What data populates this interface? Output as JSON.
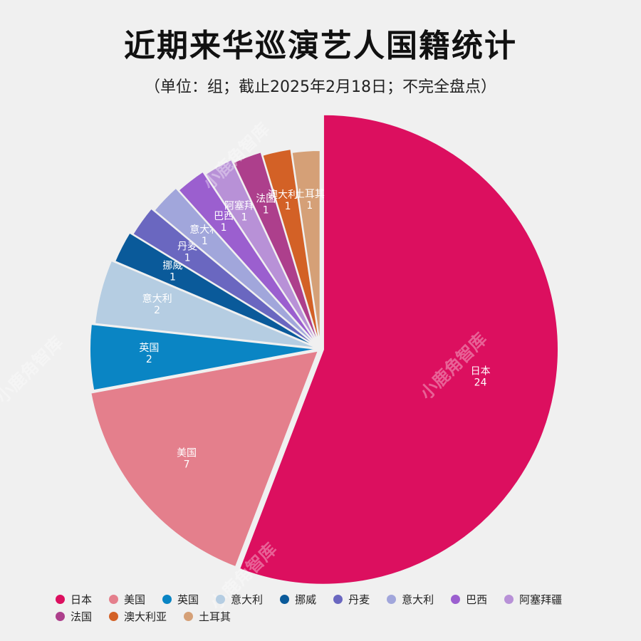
{
  "title": "近期来华巡演艺人国籍统计",
  "subtitle": "（单位：组；截止2025年2月18日；不完全盘点）",
  "watermark": "小鹿角智库",
  "chart_data": {
    "type": "pie",
    "slices": [
      {
        "label": "日本",
        "value": 24,
        "color": "#dc0f5f"
      },
      {
        "label": "美国",
        "value": 7,
        "color": "#e47f8c"
      },
      {
        "label": "英国",
        "value": 2,
        "color": "#0a85c4"
      },
      {
        "label": "意大利",
        "value": 2,
        "color": "#b5cde2"
      },
      {
        "label": "挪威",
        "value": 1,
        "color": "#0a5a9a"
      },
      {
        "label": "丹麦",
        "value": 1,
        "color": "#6a67c0"
      },
      {
        "label": "意大利",
        "value": 1,
        "color": "#a1a6db"
      },
      {
        "label": "巴西",
        "value": 1,
        "color": "#9b5fcf"
      },
      {
        "label": "阿塞拜疆",
        "value": 1,
        "color": "#b891d7"
      },
      {
        "label": "法国",
        "value": 1,
        "color": "#ad3f8c"
      },
      {
        "label": "澳大利亚",
        "value": 1,
        "color": "#d36126"
      },
      {
        "label": "土耳其",
        "value": 1,
        "color": "#d5a077"
      }
    ]
  }
}
